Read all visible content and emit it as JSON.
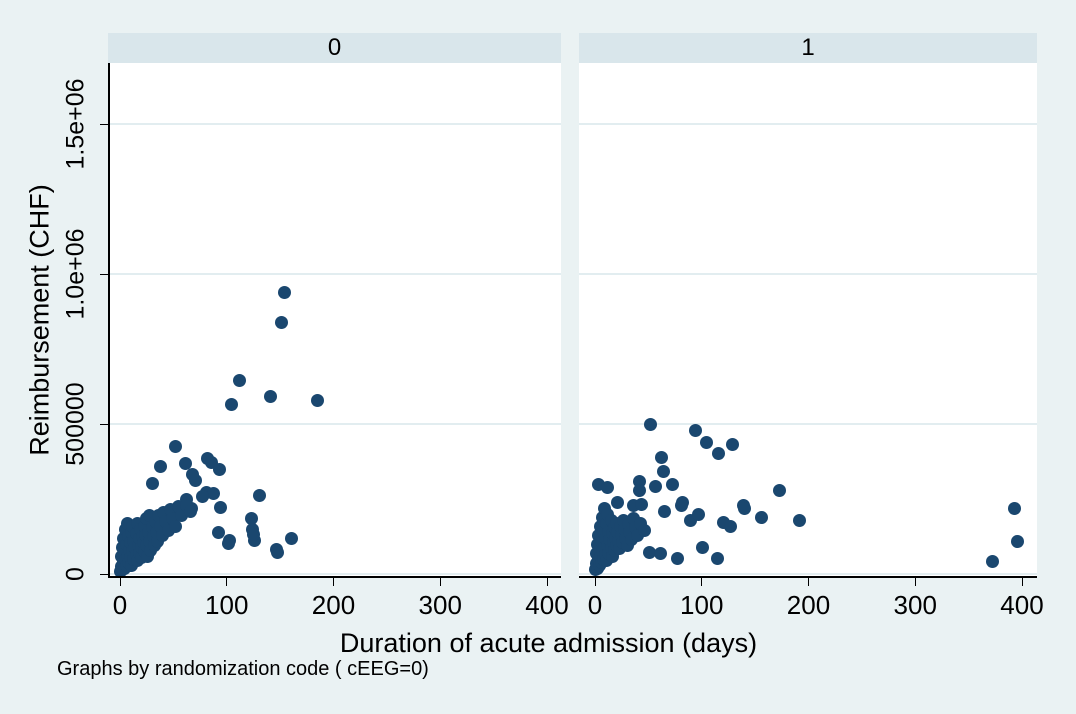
{
  "colors": {
    "background": "#eaf2f3",
    "plot_background": "#ffffff",
    "header_background": "#d9e6eb",
    "marker": "#1a476f",
    "grid": "#e2edf0",
    "axis": "#000000"
  },
  "chart_data": {
    "type": "scatter",
    "facet_note": "Graphs by randomization code ( cEEG=0)",
    "xlabel": "Duration of acute admission (days)",
    "ylabel": "Reimbursement (CHF)",
    "x_ticks": [
      0,
      100,
      200,
      300,
      400
    ],
    "x_tick_labels": [
      "0",
      "100",
      "200",
      "300",
      "400"
    ],
    "y_ticks": [
      0,
      500000,
      1000000,
      1500000
    ],
    "y_tick_labels": [
      "0",
      "500000",
      "1.0e+06",
      "1.5e+06"
    ],
    "xlim": [
      -11,
      414
    ],
    "ylim": [
      -8000,
      1705000
    ],
    "grid": "horizontal",
    "marker": "filled-circle",
    "panels": [
      {
        "label": "0",
        "points": [
          [
            154,
            940000
          ],
          [
            151,
            840000
          ],
          [
            112,
            645000
          ],
          [
            104,
            565000
          ],
          [
            141,
            593000
          ],
          [
            185,
            580000
          ],
          [
            52,
            425000
          ],
          [
            38,
            357000
          ],
          [
            61,
            370000
          ],
          [
            82,
            385000
          ],
          [
            86,
            372000
          ],
          [
            93,
            347000
          ],
          [
            68,
            333000
          ],
          [
            71,
            313000
          ],
          [
            30,
            303000
          ],
          [
            81,
            273000
          ],
          [
            88,
            269000
          ],
          [
            62,
            247000
          ],
          [
            77,
            257000
          ],
          [
            67,
            220000
          ],
          [
            94,
            221000
          ],
          [
            131,
            262000
          ],
          [
            123,
            185000
          ],
          [
            124,
            147000
          ],
          [
            126,
            113000
          ],
          [
            103,
            113000
          ],
          [
            147,
            83000
          ],
          [
            161,
            117000
          ],
          [
            92,
            137000
          ],
          [
            102,
            103000
          ],
          [
            125,
            131000
          ],
          [
            148,
            73000
          ],
          [
            0,
            10000
          ],
          [
            1,
            25000
          ],
          [
            1,
            60000
          ],
          [
            2,
            15000
          ],
          [
            2,
            90000
          ],
          [
            3,
            40000
          ],
          [
            3,
            120000
          ],
          [
            4,
            20000
          ],
          [
            4,
            70000
          ],
          [
            5,
            50000
          ],
          [
            5,
            150000
          ],
          [
            6,
            30000
          ],
          [
            6,
            100000
          ],
          [
            7,
            60000
          ],
          [
            7,
            170000
          ],
          [
            8,
            40000
          ],
          [
            8,
            125000
          ],
          [
            9,
            80000
          ],
          [
            10,
            55000
          ],
          [
            10,
            105000
          ],
          [
            11,
            30000
          ],
          [
            11,
            140000
          ],
          [
            12,
            75000
          ],
          [
            12,
            160000
          ],
          [
            13,
            50000
          ],
          [
            13,
            110000
          ],
          [
            14,
            90000
          ],
          [
            15,
            65000
          ],
          [
            15,
            135000
          ],
          [
            16,
            45000
          ],
          [
            16,
            170000
          ],
          [
            17,
            95000
          ],
          [
            18,
            70000
          ],
          [
            18,
            120000
          ],
          [
            19,
            150000
          ],
          [
            20,
            55000
          ],
          [
            20,
            90000
          ],
          [
            21,
            125000
          ],
          [
            22,
            105000
          ],
          [
            23,
            75000
          ],
          [
            23,
            160000
          ],
          [
            24,
            130000
          ],
          [
            25,
            95000
          ],
          [
            25,
            185000
          ],
          [
            26,
            60000
          ],
          [
            27,
            140000
          ],
          [
            28,
            110000
          ],
          [
            28,
            195000
          ],
          [
            29,
            80000
          ],
          [
            30,
            155000
          ],
          [
            31,
            125000
          ],
          [
            32,
            95000
          ],
          [
            33,
            175000
          ],
          [
            34,
            140000
          ],
          [
            35,
            110000
          ],
          [
            36,
            195000
          ],
          [
            38,
            160000
          ],
          [
            40,
            130000
          ],
          [
            41,
            205000
          ],
          [
            43,
            175000
          ],
          [
            45,
            145000
          ],
          [
            47,
            215000
          ],
          [
            49,
            185000
          ],
          [
            52,
            160000
          ],
          [
            55,
            225000
          ],
          [
            58,
            195000
          ],
          [
            62,
            230000
          ],
          [
            66,
            210000
          ]
        ]
      },
      {
        "label": "1",
        "points": [
          [
            52,
            500000
          ],
          [
            94,
            480000
          ],
          [
            104,
            437000
          ],
          [
            116,
            403000
          ],
          [
            129,
            433000
          ],
          [
            62,
            387000
          ],
          [
            64,
            343000
          ],
          [
            42,
            310000
          ],
          [
            42,
            280000
          ],
          [
            3,
            300000
          ],
          [
            12,
            287000
          ],
          [
            57,
            293000
          ],
          [
            73,
            300000
          ],
          [
            82,
            240000
          ],
          [
            173,
            277000
          ],
          [
            139,
            230000
          ],
          [
            65,
            210000
          ],
          [
            81,
            230000
          ],
          [
            89,
            180000
          ],
          [
            97,
            197000
          ],
          [
            120,
            173000
          ],
          [
            127,
            157000
          ],
          [
            140,
            217000
          ],
          [
            156,
            187000
          ],
          [
            192,
            180000
          ],
          [
            51,
            73000
          ],
          [
            61,
            70000
          ],
          [
            77,
            53000
          ],
          [
            101,
            87000
          ],
          [
            115,
            53000
          ],
          [
            393,
            217000
          ],
          [
            396,
            110000
          ],
          [
            372,
            43000
          ],
          [
            21,
            237000
          ],
          [
            36,
            230000
          ],
          [
            44,
            233000
          ],
          [
            0,
            15000
          ],
          [
            1,
            35000
          ],
          [
            1,
            70000
          ],
          [
            2,
            20000
          ],
          [
            2,
            100000
          ],
          [
            3,
            50000
          ],
          [
            3,
            130000
          ],
          [
            4,
            30000
          ],
          [
            4,
            80000
          ],
          [
            5,
            60000
          ],
          [
            5,
            160000
          ],
          [
            6,
            40000
          ],
          [
            6,
            110000
          ],
          [
            7,
            75000
          ],
          [
            7,
            190000
          ],
          [
            8,
            50000
          ],
          [
            8,
            140000
          ],
          [
            9,
            90000
          ],
          [
            9,
            220000
          ],
          [
            10,
            65000
          ],
          [
            10,
            120000
          ],
          [
            11,
            45000
          ],
          [
            11,
            170000
          ],
          [
            12,
            95000
          ],
          [
            12,
            200000
          ],
          [
            13,
            70000
          ],
          [
            13,
            140000
          ],
          [
            14,
            115000
          ],
          [
            15,
            85000
          ],
          [
            15,
            180000
          ],
          [
            16,
            60000
          ],
          [
            16,
            135000
          ],
          [
            17,
            105000
          ],
          [
            18,
            80000
          ],
          [
            18,
            155000
          ],
          [
            19,
            120000
          ],
          [
            20,
            95000
          ],
          [
            20,
            170000
          ],
          [
            21,
            140000
          ],
          [
            22,
            110000
          ],
          [
            23,
            85000
          ],
          [
            24,
            160000
          ],
          [
            25,
            130000
          ],
          [
            26,
            105000
          ],
          [
            27,
            180000
          ],
          [
            28,
            150000
          ],
          [
            29,
            120000
          ],
          [
            30,
            95000
          ],
          [
            31,
            165000
          ],
          [
            32,
            140000
          ],
          [
            34,
            115000
          ],
          [
            36,
            185000
          ],
          [
            38,
            155000
          ],
          [
            40,
            130000
          ],
          [
            43,
            170000
          ],
          [
            46,
            145000
          ]
        ]
      }
    ]
  }
}
